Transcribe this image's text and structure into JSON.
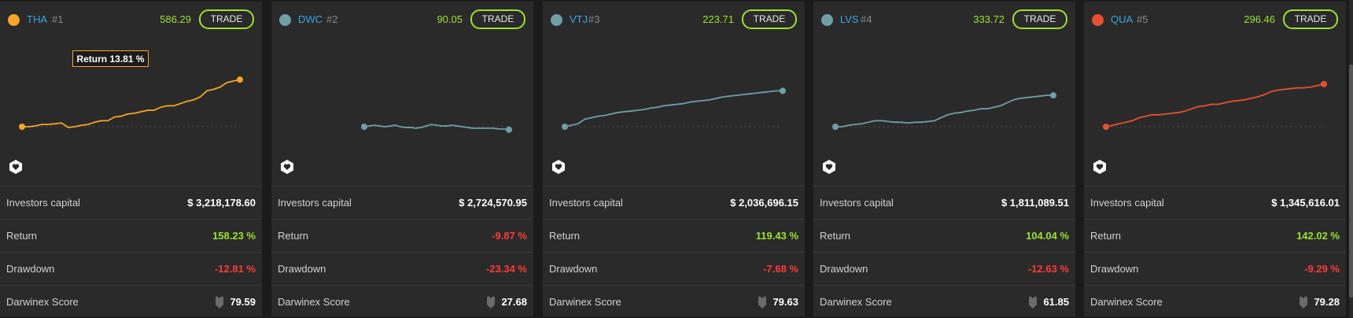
{
  "cards": [
    {
      "ticker": "THA",
      "rank": "#1",
      "price": "586.29",
      "trade_label": "TRADE",
      "dot_color": "#f5a623",
      "line_color": "#f5a623",
      "tooltip": "Return 13.81 %",
      "investors_capital_label": "Investors capital",
      "investors_capital": "$ 3,218,178.60",
      "return_label": "Return",
      "return": "158.23 %",
      "drawdown_label": "Drawdown",
      "drawdown": "-12.81 %",
      "score_label": "Darwinex Score",
      "score": "79.59",
      "return_series": [
        0,
        0,
        1,
        3,
        3,
        4,
        5,
        -1,
        0,
        2,
        3,
        6,
        8,
        8,
        13,
        14,
        17,
        18,
        20,
        22,
        22,
        26,
        28,
        28,
        31,
        34,
        36,
        40,
        48,
        50,
        53,
        59,
        61,
        63
      ]
    },
    {
      "ticker": "DWC",
      "rank": "#2",
      "price": "90.05",
      "trade_label": "TRADE",
      "dot_color": "#6fa0a3",
      "line_color": "#6fa0a3",
      "tooltip": "",
      "investors_capital_label": "Investors capital",
      "investors_capital": "$ 2,724,570.95",
      "return_label": "Return",
      "return": "-9.87 %",
      "drawdown_label": "Drawdown",
      "drawdown": "-23.34 %",
      "score_label": "Darwinex Score",
      "score": "27.68",
      "return_series": [
        0,
        1,
        2,
        1,
        0,
        1,
        2,
        0,
        -1,
        -1,
        -2,
        -1,
        1,
        3,
        2,
        1,
        1,
        2,
        1,
        0,
        -1,
        -2,
        -2,
        -2,
        -2,
        -2,
        -3,
        -3,
        -4
      ]
    },
    {
      "ticker": "VTJ",
      "rank": "#3",
      "price": "223.71",
      "trade_label": "TRADE",
      "dot_color": "#6fa0a3",
      "line_color": "#6fa0a3",
      "tooltip": "",
      "investors_capital_label": "Investors capital",
      "investors_capital": "$ 2,036,696.15",
      "return_label": "Return",
      "return": "119.43 %",
      "drawdown_label": "Drawdown",
      "drawdown": "-7.68 %",
      "score_label": "Darwinex Score",
      "score": "79.63",
      "return_series": [
        0,
        2,
        4,
        10,
        12,
        14,
        15,
        17,
        19,
        20,
        21,
        22,
        23,
        25,
        26,
        28,
        29,
        30,
        31,
        33,
        34,
        35,
        36,
        38,
        40,
        41,
        42,
        43,
        44,
        45,
        46,
        47,
        48,
        48
      ]
    },
    {
      "ticker": "LVS",
      "rank": "#4",
      "price": "333.72",
      "trade_label": "TRADE",
      "dot_color": "#6fa0a3",
      "line_color": "#6fa0a3",
      "tooltip": "",
      "investors_capital_label": "Investors capital",
      "investors_capital": "$ 1,811,089.51",
      "return_label": "Return",
      "return": "104.04 %",
      "drawdown_label": "Drawdown",
      "drawdown": "-12.63 %",
      "score_label": "Darwinex Score",
      "score": "61.85",
      "return_series": [
        0,
        0,
        2,
        3,
        4,
        6,
        8,
        8,
        7,
        6,
        6,
        5,
        6,
        6,
        7,
        8,
        12,
        16,
        18,
        19,
        21,
        22,
        24,
        24,
        26,
        28,
        32,
        36,
        38,
        39,
        40,
        41,
        42,
        42
      ]
    },
    {
      "ticker": "QUA",
      "rank": "#5",
      "price": "296.46",
      "trade_label": "TRADE",
      "dot_color": "#e8502e",
      "line_color": "#e8502e",
      "tooltip": "",
      "investors_capital_label": "Investors capital",
      "investors_capital": "$ 1,345,616.01",
      "return_label": "Return",
      "return": "142.02 %",
      "drawdown_label": "Drawdown",
      "drawdown": "-9.29 %",
      "score_label": "Darwinex Score",
      "score": "79.28",
      "return_series": [
        0,
        2,
        4,
        6,
        8,
        12,
        14,
        16,
        16,
        17,
        18,
        19,
        21,
        24,
        27,
        28,
        30,
        30,
        32,
        34,
        35,
        36,
        38,
        40,
        43,
        47,
        49,
        50,
        51,
        52,
        52,
        53,
        55,
        57
      ]
    }
  ]
}
